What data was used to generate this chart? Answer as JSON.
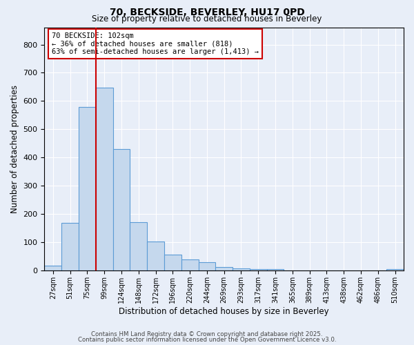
{
  "title1": "70, BECKSIDE, BEVERLEY, HU17 0PD",
  "title2": "Size of property relative to detached houses in Beverley",
  "xlabel": "Distribution of detached houses by size in Beverley",
  "ylabel": "Number of detached properties",
  "categories": [
    "27sqm",
    "51sqm",
    "75sqm",
    "99sqm",
    "124sqm",
    "148sqm",
    "172sqm",
    "196sqm",
    "220sqm",
    "244sqm",
    "269sqm",
    "293sqm",
    "317sqm",
    "341sqm",
    "365sqm",
    "389sqm",
    "413sqm",
    "438sqm",
    "462sqm",
    "486sqm",
    "510sqm"
  ],
  "values": [
    18,
    168,
    580,
    648,
    430,
    172,
    103,
    55,
    40,
    30,
    13,
    8,
    4,
    4,
    0,
    0,
    0,
    0,
    0,
    0,
    5
  ],
  "bar_color": "#c5d8ed",
  "bar_edge_color": "#5b9bd5",
  "vline_position": 2.5,
  "vline_color": "#cc0000",
  "annotation_text": "70 BECKSIDE: 102sqm\n← 36% of detached houses are smaller (818)\n63% of semi-detached houses are larger (1,413) →",
  "annotation_box_color": "#ffffff",
  "annotation_box_edge": "#cc0000",
  "ylim": [
    0,
    860
  ],
  "yticks": [
    0,
    100,
    200,
    300,
    400,
    500,
    600,
    700,
    800
  ],
  "bg_color": "#e8eef8",
  "plot_bg_color": "#e8eef8",
  "grid_color": "#ffffff",
  "footer1": "Contains HM Land Registry data © Crown copyright and database right 2025.",
  "footer2": "Contains public sector information licensed under the Open Government Licence v3.0."
}
